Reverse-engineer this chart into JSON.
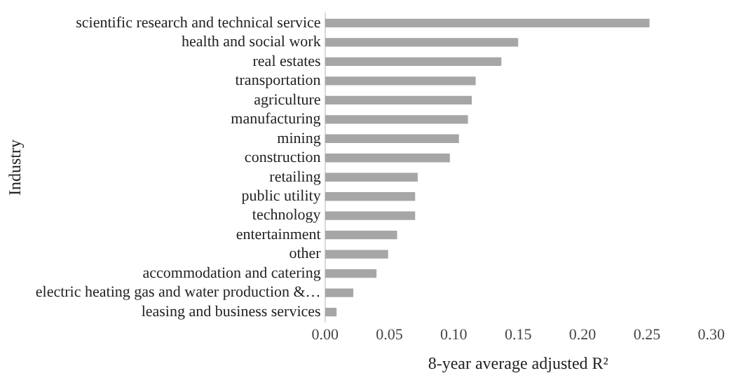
{
  "chart_data": {
    "type": "bar",
    "orientation": "horizontal",
    "xlabel": "8-year average adjusted R²",
    "ylabel": "Industry",
    "categories": [
      "scientific research and technical service",
      "health and social work",
      "real estates",
      "transportation",
      "agriculture",
      "manufacturing",
      "mining",
      "construction",
      "retailing",
      "public utility",
      "technology",
      "entertainment",
      "other",
      "accommodation and catering",
      "electric heating gas and water production &…",
      "leasing and business services"
    ],
    "values": [
      0.252,
      0.15,
      0.137,
      0.117,
      0.114,
      0.111,
      0.104,
      0.097,
      0.072,
      0.07,
      0.07,
      0.056,
      0.049,
      0.04,
      0.022,
      0.009
    ],
    "color": "#a6a6a6",
    "xlim": [
      0,
      0.3
    ],
    "xticks": [
      {
        "value": 0,
        "label": "0.00"
      },
      {
        "value": 0.05,
        "label": "0.05"
      },
      {
        "value": 0.1,
        "label": "0.10"
      },
      {
        "value": 0.15,
        "label": "0.15"
      },
      {
        "value": 0.2,
        "label": "0.20"
      },
      {
        "value": 0.25,
        "label": "0.25"
      },
      {
        "value": 0.3,
        "label": "0.30"
      }
    ],
    "grid": false,
    "legend": false
  }
}
